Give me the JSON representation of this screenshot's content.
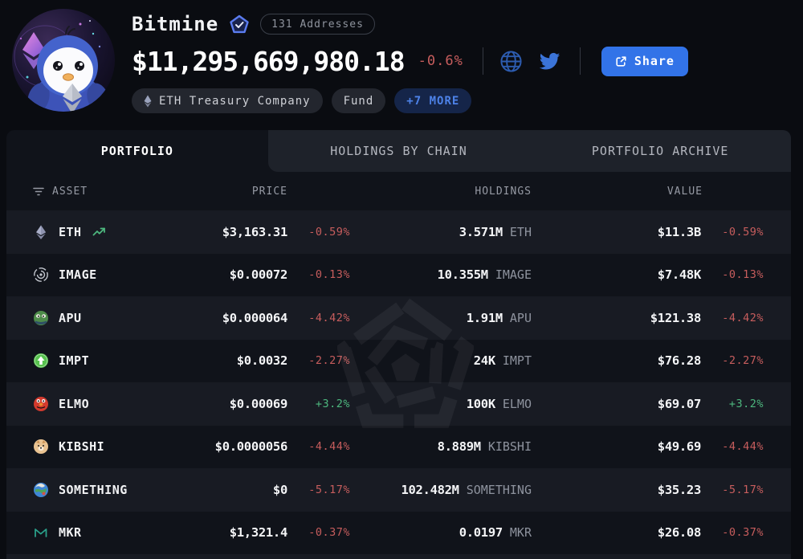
{
  "header": {
    "name": "Bitmine",
    "addresses_badge": "131 Addresses",
    "total_value": "$11,295,669,980.18",
    "total_change": "-0.6%",
    "share_label": "Share",
    "tags": [
      {
        "label": "ETH Treasury Company",
        "icon": "eth-diamond",
        "style": "default"
      },
      {
        "label": "Fund",
        "style": "default"
      },
      {
        "label": "+7 MORE",
        "style": "accent"
      }
    ]
  },
  "tabs": [
    {
      "label": "PORTFOLIO",
      "active": true
    },
    {
      "label": "HOLDINGS BY CHAIN",
      "active": false
    },
    {
      "label": "PORTFOLIO ARCHIVE",
      "active": false
    }
  ],
  "table": {
    "columns": [
      "ASSET",
      "PRICE",
      "HOLDINGS",
      "VALUE"
    ],
    "rows": [
      {
        "asset": "ETH",
        "icon": "eth",
        "trend": true,
        "price": "$3,163.31",
        "price_change": "-0.59%",
        "holdings_amount": "3.571M",
        "holdings_unit": "ETH",
        "value": "$11.3B",
        "value_change": "-0.59%"
      },
      {
        "asset": "IMAGE",
        "icon": "image",
        "trend": false,
        "price": "$0.00072",
        "price_change": "-0.13%",
        "holdings_amount": "10.355M",
        "holdings_unit": "IMAGE",
        "value": "$7.48K",
        "value_change": "-0.13%"
      },
      {
        "asset": "APU",
        "icon": "apu",
        "trend": false,
        "price": "$0.000064",
        "price_change": "-4.42%",
        "holdings_amount": "1.91M",
        "holdings_unit": "APU",
        "value": "$121.38",
        "value_change": "-4.42%"
      },
      {
        "asset": "IMPT",
        "icon": "impt",
        "trend": false,
        "price": "$0.0032",
        "price_change": "-2.27%",
        "holdings_amount": "24K",
        "holdings_unit": "IMPT",
        "value": "$76.28",
        "value_change": "-2.27%"
      },
      {
        "asset": "ELMO",
        "icon": "elmo",
        "trend": false,
        "price": "$0.00069",
        "price_change": "+3.2%",
        "holdings_amount": "100K",
        "holdings_unit": "ELMO",
        "value": "$69.07",
        "value_change": "+3.2%"
      },
      {
        "asset": "KIBSHI",
        "icon": "kibshi",
        "trend": false,
        "price": "$0.0000056",
        "price_change": "-4.44%",
        "holdings_amount": "8.889M",
        "holdings_unit": "KIBSHI",
        "value": "$49.69",
        "value_change": "-4.44%"
      },
      {
        "asset": "SOMETHING",
        "icon": "something",
        "trend": false,
        "price": "$0",
        "price_change": "-5.17%",
        "holdings_amount": "102.482M",
        "holdings_unit": "SOMETHING",
        "value": "$35.23",
        "value_change": "-5.17%"
      },
      {
        "asset": "MKR",
        "icon": "mkr",
        "trend": false,
        "price": "$1,321.4",
        "price_change": "-0.37%",
        "holdings_amount": "0.0197",
        "holdings_unit": "MKR",
        "value": "$26.08",
        "value_change": "-0.37%"
      }
    ]
  },
  "colors": {
    "accent_blue": "#3273e8",
    "negative_red": "#c75d5d",
    "positive_green": "#4db77e",
    "panel_bg": "#10131a",
    "row_alt_bg": "#181b23"
  }
}
